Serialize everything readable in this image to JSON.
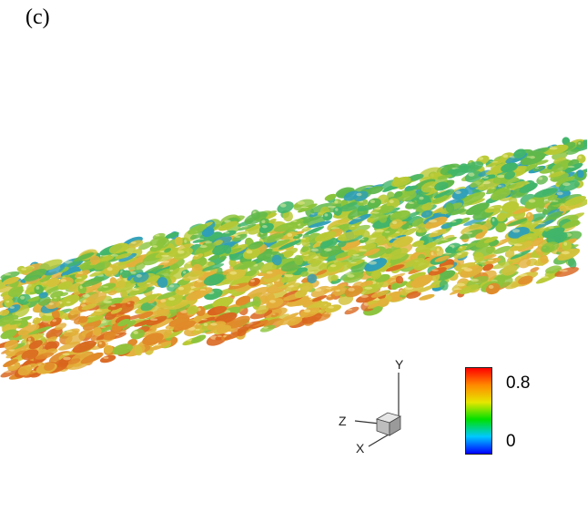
{
  "panel": {
    "label": "(c)"
  },
  "axes_triad": {
    "x": "X",
    "y": "Y",
    "z": "Z"
  },
  "colorbar": {
    "max_label": "0.8",
    "min_label": "0",
    "stops": [
      "#ff0000",
      "#ff8a00",
      "#e6e600",
      "#00e000",
      "#00c8ff",
      "#0000ff"
    ]
  },
  "surface": {
    "colors": [
      "#d9651e",
      "#e08a2a",
      "#e3b03a",
      "#d4c23a",
      "#b9c935",
      "#8cc43c",
      "#5fb84a",
      "#41b56a",
      "#2f9fb8",
      "#d06a26",
      "#caa83a"
    ]
  }
}
